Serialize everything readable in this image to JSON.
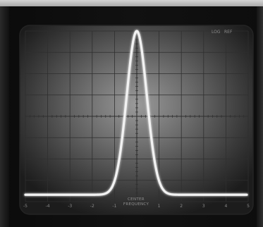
{
  "screen": {
    "x_labels": [
      "-5",
      "-4",
      "-3",
      "-2",
      "-1",
      "",
      "1",
      "2",
      "3",
      "4",
      "5"
    ],
    "y_labels_left": [
      "",
      "",
      "",
      "",
      "",
      "",
      "",
      ""
    ],
    "axis_caption_lines": [
      "CENTER",
      "FREQUENCY"
    ],
    "top_right_marks": [
      "LOG",
      "REF"
    ]
  },
  "trace": {
    "shape": "gaussian-peak",
    "center_x": 0,
    "peak_level": 1.0,
    "baseline_level": 0.02,
    "width_sigma": 0.45,
    "color": "#f2f2f2"
  },
  "colors": {
    "screen_center": "#8c8c8c",
    "screen_edge": "#1e1e1e",
    "grid": "#2f2f2f",
    "bezel": "#0d0d0d"
  }
}
